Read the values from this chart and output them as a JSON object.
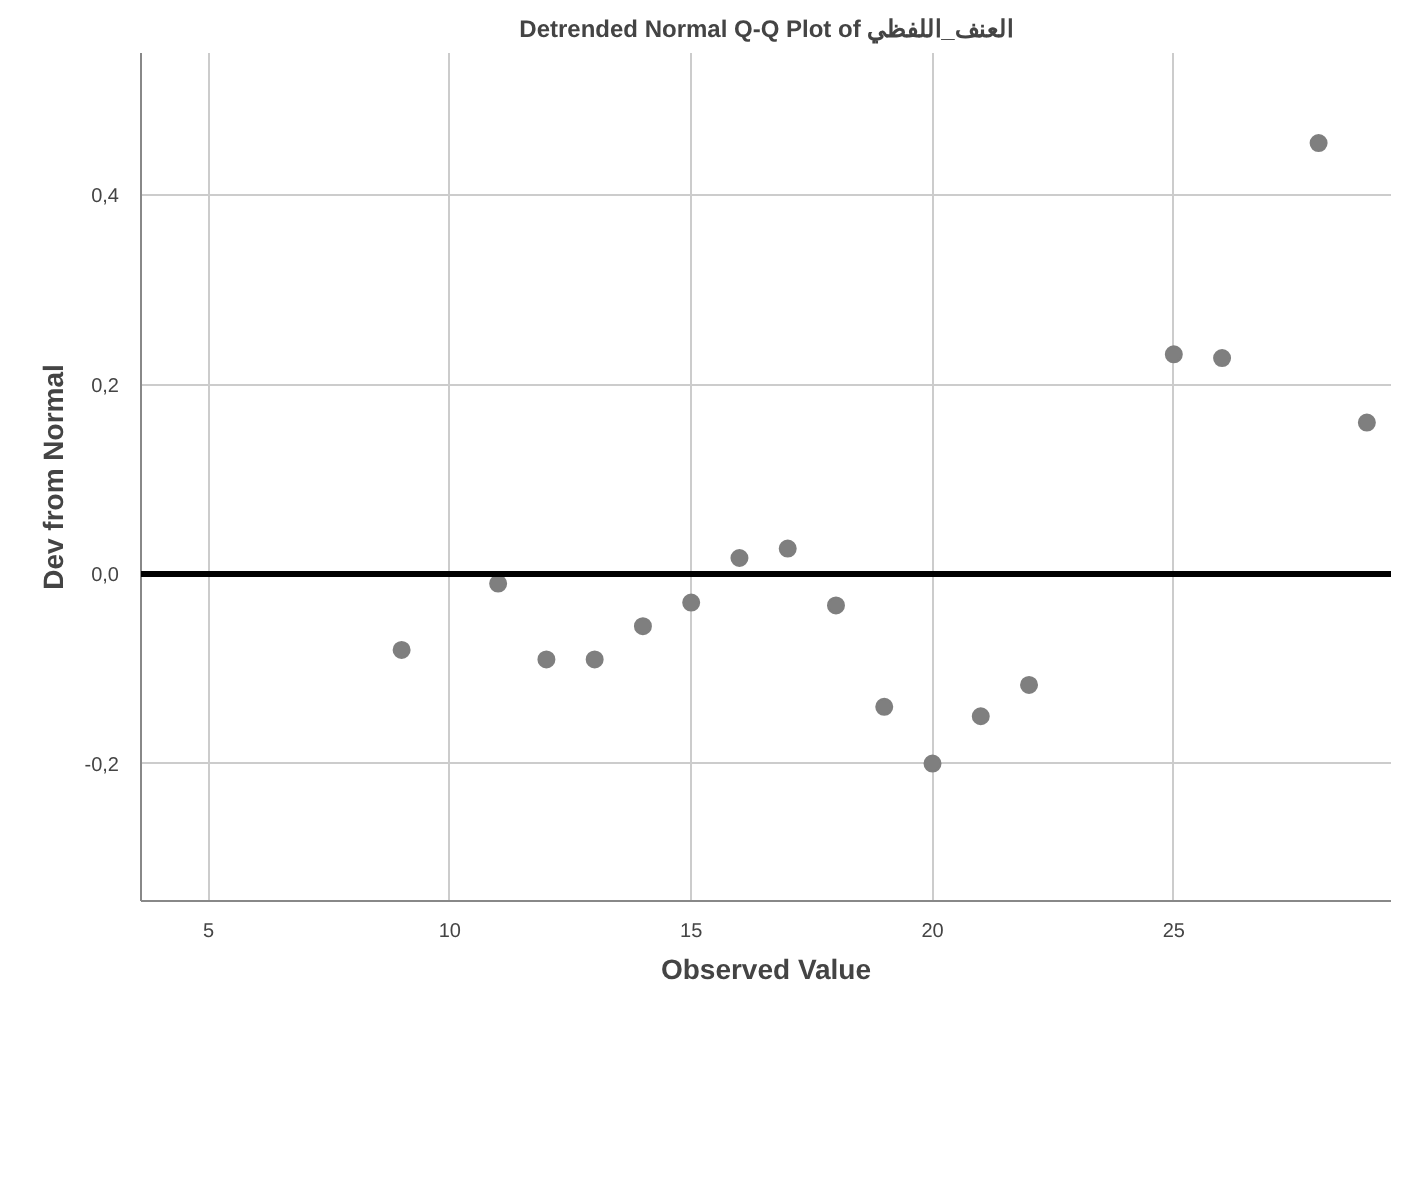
{
  "chart_data": {
    "type": "scatter",
    "title": "Detrended Normal Q-Q Plot of العنف_اللفظي",
    "xlabel": "Observed Value",
    "ylabel": "Dev from Normal",
    "x": [
      9,
      11,
      12,
      13,
      14,
      15,
      16,
      17,
      18,
      19,
      20,
      21,
      22,
      25,
      26,
      28,
      29
    ],
    "series": [
      {
        "color": "#7f7f7f",
        "values": [
          -0.08,
          -0.01,
          -0.09,
          -0.09,
          -0.055,
          -0.03,
          0.017,
          0.027,
          -0.033,
          -0.14,
          -0.2,
          -0.15,
          -0.117,
          0.232,
          0.228,
          0.455,
          0.16
        ]
      }
    ],
    "xlim": [
      3.6,
      29.5
    ],
    "ylim": [
      -0.345,
      0.55
    ],
    "xticks": [
      5,
      10,
      15,
      20,
      25
    ],
    "yticks": [
      {
        "value": -0.2,
        "label": "-0,2"
      },
      {
        "value": 0,
        "label": "0,0"
      },
      {
        "value": 0.2,
        "label": "0,2"
      },
      {
        "value": 0.4,
        "label": "0,4"
      }
    ],
    "ref_lines": [
      {
        "axis": "y",
        "value": 0,
        "color": "#000000"
      }
    ],
    "grid": true,
    "marker": "circle"
  }
}
